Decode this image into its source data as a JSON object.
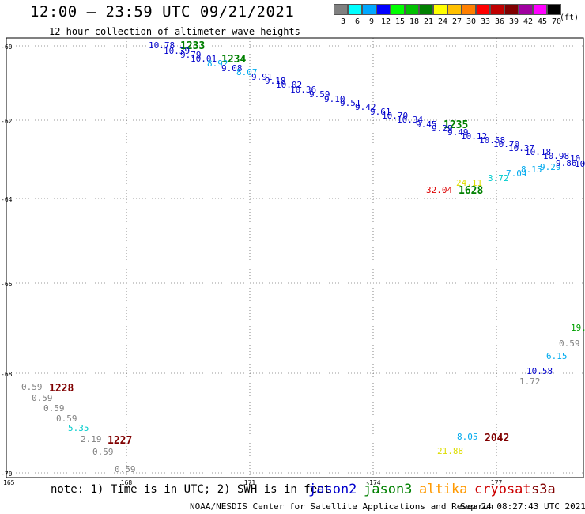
{
  "header": {
    "title": "12:00 – 23:59 UTC 09/21/2021",
    "subtitle": "12 hour collection of altimeter wave heights"
  },
  "color_scale": {
    "unit": "(ft)",
    "bins": [
      {
        "label": "3",
        "color": "#808080"
      },
      {
        "label": "6",
        "color": "#00ffff"
      },
      {
        "label": "9",
        "color": "#00a8ff"
      },
      {
        "label": "12",
        "color": "#0000ff"
      },
      {
        "label": "15",
        "color": "#00ff00"
      },
      {
        "label": "18",
        "color": "#00c000"
      },
      {
        "label": "21",
        "color": "#008000"
      },
      {
        "label": "24",
        "color": "#ffff00"
      },
      {
        "label": "27",
        "color": "#ffc000"
      },
      {
        "label": "30",
        "color": "#ff8000"
      },
      {
        "label": "33",
        "color": "#ff0000"
      },
      {
        "label": "36",
        "color": "#c00000"
      },
      {
        "label": "39",
        "color": "#800000"
      },
      {
        "label": "42",
        "color": "#a000a0"
      },
      {
        "label": "45",
        "color": "#ff00ff"
      },
      {
        "label": "70",
        "color": "#000000"
      }
    ]
  },
  "map": {
    "lat_ticks": [
      "-60",
      "-62",
      "-64",
      "-66",
      "-68",
      "-70"
    ],
    "lon_ticks": [
      "165",
      "168",
      "171",
      "-174",
      "177"
    ],
    "passes": [
      {
        "time": "1233",
        "color": "#008000"
      },
      {
        "time": "1234",
        "color": "#008000"
      },
      {
        "time": "1235",
        "color": "#008000"
      },
      {
        "time": "1628",
        "color": "#008000"
      },
      {
        "time": "1228",
        "color": "#800000"
      },
      {
        "time": "1227",
        "color": "#800000"
      },
      {
        "time": "2042",
        "color": "#800000"
      }
    ],
    "swh_labels": [
      {
        "text": "10.78",
        "color": "#0000cc"
      },
      {
        "text": "10.39",
        "color": "#0000cc"
      },
      {
        "text": "9.79",
        "color": "#0000cc"
      },
      {
        "text": "10.01",
        "color": "#0000cc"
      },
      {
        "text": "8.92",
        "color": "#00aaee"
      },
      {
        "text": "9.08",
        "color": "#0000cc"
      },
      {
        "text": "8.07",
        "color": "#00aaee"
      },
      {
        "text": "9.91",
        "color": "#0000cc"
      },
      {
        "text": "9.18",
        "color": "#0000cc"
      },
      {
        "text": "10.02",
        "color": "#0000cc"
      },
      {
        "text": "10.36",
        "color": "#0000cc"
      },
      {
        "text": "9.59",
        "color": "#0000cc"
      },
      {
        "text": "9.10",
        "color": "#0000cc"
      },
      {
        "text": "9.51",
        "color": "#0000cc"
      },
      {
        "text": "9.42",
        "color": "#0000cc"
      },
      {
        "text": "9.61",
        "color": "#0000cc"
      },
      {
        "text": "10.70",
        "color": "#0000cc"
      },
      {
        "text": "10.34",
        "color": "#0000cc"
      },
      {
        "text": "9.45",
        "color": "#0000cc"
      },
      {
        "text": "9.29",
        "color": "#0000cc"
      },
      {
        "text": "9.49",
        "color": "#0000cc"
      },
      {
        "text": "10.12",
        "color": "#0000cc"
      },
      {
        "text": "10.58",
        "color": "#0000cc"
      },
      {
        "text": "10.70",
        "color": "#0000cc"
      },
      {
        "text": "10.37",
        "color": "#0000cc"
      },
      {
        "text": "10.18",
        "color": "#0000cc"
      },
      {
        "text": "10.98",
        "color": "#0000cc"
      },
      {
        "text": "10.",
        "color": "#0000cc"
      },
      {
        "text": "9.29",
        "color": "#00aaee"
      },
      {
        "text": "9.86",
        "color": "#0000cc"
      },
      {
        "text": "10",
        "color": "#0000cc"
      },
      {
        "text": "8.15",
        "color": "#00aaee"
      },
      {
        "text": "7.04",
        "color": "#00aaee"
      },
      {
        "text": "3.72",
        "color": "#00cccc"
      },
      {
        "text": "24.11",
        "color": "#dddd00"
      },
      {
        "text": "32.04",
        "color": "#dd0000"
      },
      {
        "text": "19.",
        "color": "#00a000"
      },
      {
        "text": "0.59",
        "color": "#808080"
      },
      {
        "text": "6.15",
        "color": "#00aaee"
      },
      {
        "text": "10.58",
        "color": "#0000cc"
      },
      {
        "text": "1.72",
        "color": "#808080"
      },
      {
        "text": "0.59",
        "color": "#808080"
      },
      {
        "text": "0.59",
        "color": "#808080"
      },
      {
        "text": "0.59",
        "color": "#808080"
      },
      {
        "text": "0.59",
        "color": "#808080"
      },
      {
        "text": "5.35",
        "color": "#00cccc"
      },
      {
        "text": "2.19",
        "color": "#808080"
      },
      {
        "text": "0.59",
        "color": "#808080"
      },
      {
        "text": "0.59",
        "color": "#808080"
      },
      {
        "text": "8.05",
        "color": "#00aaee"
      },
      {
        "text": "21.88",
        "color": "#dddd00"
      }
    ]
  },
  "footer": {
    "note": "note: 1) Time is in UTC; 2) SWH is in feet",
    "satellites": [
      {
        "name": "jason2",
        "color": "#0000cc"
      },
      {
        "name": "jason3",
        "color": "#008000"
      },
      {
        "name": "altika",
        "color": "#ff9900"
      },
      {
        "name": "cryosat",
        "color": "#cc0000"
      },
      {
        "name": "s3a",
        "color": "#800000"
      }
    ],
    "credit": "NOAA/NESDIS Center for Satellite Applications and Research",
    "timestamp": "Sep 24 08:27:43 UTC 2021"
  }
}
